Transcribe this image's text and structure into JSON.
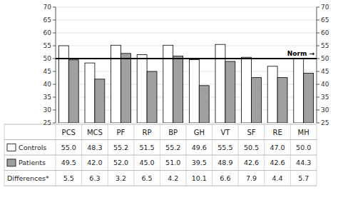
{
  "chart_data": {
    "type": "bar",
    "categories": [
      "PCS",
      "MCS",
      "PF",
      "RP",
      "BP",
      "GH",
      "VT",
      "SF",
      "RE",
      "MH"
    ],
    "series": [
      {
        "name": "Controls",
        "color": "#ffffff",
        "values": [
          55.0,
          48.3,
          55.2,
          51.5,
          55.2,
          49.6,
          55.5,
          50.5,
          47.0,
          50.0
        ],
        "value_labels": [
          "55.0",
          "48.3",
          "55.2",
          "51.5",
          "55.2",
          "49.6",
          "55.5",
          "50.5",
          "47.0",
          "50.0"
        ]
      },
      {
        "name": "Patients",
        "color": "#a0a0a0",
        "values": [
          49.5,
          42.0,
          52.0,
          45.0,
          51.0,
          39.5,
          48.9,
          42.6,
          42.6,
          44.3
        ],
        "value_labels": [
          "49.5",
          "42.0",
          "52.0",
          "45.0",
          "51.0",
          "39.5",
          "48.9",
          "42.6",
          "42.6",
          "44.3"
        ]
      }
    ],
    "differences": {
      "name": "Differences*",
      "values": [
        5.5,
        6.3,
        3.2,
        6.5,
        4.2,
        10.1,
        6.6,
        7.9,
        4.4,
        5.7
      ]
    },
    "norm_line": {
      "value": 50,
      "label": "Norm →"
    },
    "ylim": [
      25,
      70
    ],
    "yticks": [
      25,
      30,
      35,
      40,
      45,
      50,
      55,
      60,
      65,
      70
    ],
    "y2lim": [
      25,
      70
    ],
    "y2ticks": [
      25,
      30,
      35,
      40,
      45,
      50,
      55,
      60,
      65,
      70
    ],
    "grid": true
  }
}
